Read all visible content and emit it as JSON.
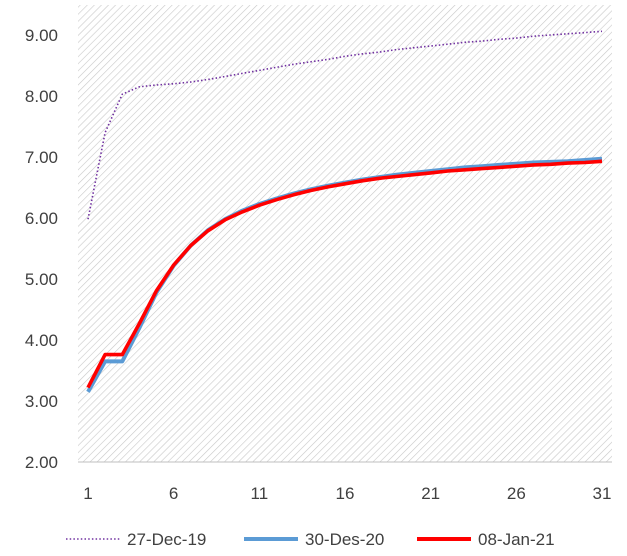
{
  "chart_data": {
    "type": "line",
    "title": "",
    "xlabel": "",
    "ylabel": "",
    "xlim": [
      1,
      31
    ],
    "ylim": [
      2.0,
      9.0
    ],
    "x_ticks": [
      1,
      6,
      11,
      16,
      21,
      26,
      31
    ],
    "x_tick_labels": [
      "1",
      "6",
      "11",
      "16",
      "21",
      "26",
      "31"
    ],
    "y_ticks": [
      2.0,
      3.0,
      4.0,
      5.0,
      6.0,
      7.0,
      8.0,
      9.0
    ],
    "y_tick_labels": [
      "2.00",
      "3.00",
      "4.00",
      "5.00",
      "6.00",
      "7.00",
      "8.00",
      "9.00"
    ],
    "grid": false,
    "background": "hatched",
    "legend_position": "bottom",
    "x": [
      1,
      2,
      3,
      4,
      5,
      6,
      7,
      8,
      9,
      10,
      11,
      12,
      13,
      14,
      15,
      16,
      17,
      18,
      19,
      20,
      21,
      22,
      23,
      24,
      25,
      26,
      27,
      28,
      29,
      30,
      31
    ],
    "series": [
      {
        "name": "27-Dec-19",
        "color": "#7030a0",
        "style": "dotted",
        "values": [
          5.98,
          7.4,
          8.03,
          8.15,
          8.18,
          8.2,
          8.23,
          8.27,
          8.32,
          8.37,
          8.42,
          8.47,
          8.52,
          8.56,
          8.6,
          8.65,
          8.69,
          8.72,
          8.76,
          8.79,
          8.82,
          8.85,
          8.88,
          8.9,
          8.93,
          8.95,
          8.98,
          9.0,
          9.02,
          9.04,
          9.06
        ]
      },
      {
        "name": "30-Des-20",
        "color": "#5b9bd5",
        "style": "solid",
        "values": [
          3.15,
          3.65,
          3.65,
          4.2,
          4.78,
          5.22,
          5.55,
          5.8,
          5.98,
          6.12,
          6.23,
          6.32,
          6.4,
          6.47,
          6.53,
          6.58,
          6.63,
          6.67,
          6.71,
          6.74,
          6.77,
          6.8,
          6.83,
          6.85,
          6.87,
          6.89,
          6.91,
          6.92,
          6.93,
          6.95,
          6.97
        ]
      },
      {
        "name": "08-Jan-21",
        "color": "#ff0000",
        "style": "solid",
        "values": [
          3.22,
          3.76,
          3.76,
          4.27,
          4.81,
          5.23,
          5.55,
          5.79,
          5.97,
          6.1,
          6.21,
          6.3,
          6.38,
          6.45,
          6.51,
          6.56,
          6.61,
          6.65,
          6.68,
          6.71,
          6.74,
          6.77,
          6.79,
          6.81,
          6.83,
          6.85,
          6.87,
          6.88,
          6.9,
          6.91,
          6.93
        ]
      }
    ]
  }
}
